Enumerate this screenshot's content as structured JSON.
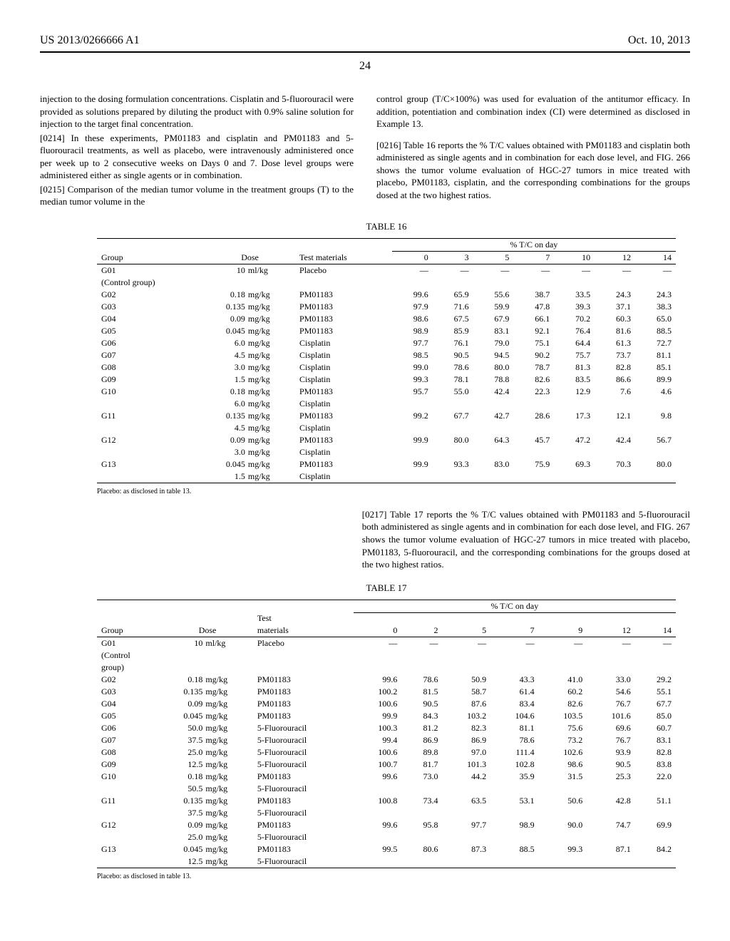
{
  "header": {
    "patent_id": "US 2013/0266666 A1",
    "date": "Oct. 10, 2013",
    "page_number": "24"
  },
  "paragraphs": {
    "col1_p1": "injection to the dosing formulation concentrations. Cisplatin and 5-fluorouracil were provided as solutions prepared by diluting the product with 0.9% saline solution for injection to the target final concentration.",
    "col1_p2_ref": "[0214]",
    "col1_p2": " In these experiments, PM01183 and cisplatin and PM01183 and 5-fluorouracil treatments, as well as placebo, were intravenously administered once per week up to 2 consecutive weeks on Days 0 and 7. Dose level groups were administered either as single agents or in combination.",
    "col1_p3_ref": "[0215]",
    "col1_p3": " Comparison of the median tumor volume in the treatment groups (T) to the median tumor volume in the",
    "col2_p1": "control group (T/C×100%) was used for evaluation of the antitumor efficacy. In addition, potentiation and combination index (CI) were determined as disclosed in Example 13.",
    "col2_p2_ref": "[0216]",
    "col2_p2": " Table 16 reports the % T/C values obtained with PM01183 and cisplatin both administered as single agents and in combination for each dose level, and FIG. 266 shows the tumor volume evaluation of HGC-27 tumors in mice treated with placebo, PM01183, cisplatin, and the corresponding combinations for the groups dosed at the two highest ratios.",
    "mid_ref": "[0217]",
    "mid": " Table 17 reports the % T/C values obtained with PM01183 and 5-fluorouracil both administered as single agents and in combination for each dose level, and FIG. 267 shows the tumor volume evaluation of HGC-27 tumors in mice treated with placebo, PM01183, 5-fluorouracil, and the corresponding combinations for the groups dosed at the two highest ratios."
  },
  "table16": {
    "caption": "TABLE 16",
    "super_header": "% T/C on day",
    "cols": [
      "Group",
      "Dose",
      "Test materials",
      "0",
      "3",
      "5",
      "7",
      "10",
      "12",
      "14"
    ],
    "footnote": "Placebo: as disclosed in table 13.",
    "rows": [
      {
        "group": "G01",
        "subgroup": "(Control group)",
        "dose_val": "10",
        "dose_unit": "ml/kg",
        "mat": "Placebo",
        "vals": [
          "—",
          "—",
          "—",
          "—",
          "—",
          "—",
          "—"
        ]
      },
      {
        "group": "G02",
        "dose_val": "0.18",
        "dose_unit": "mg/kg",
        "mat": "PM01183",
        "vals": [
          "99.6",
          "65.9",
          "55.6",
          "38.7",
          "33.5",
          "24.3",
          "24.3"
        ]
      },
      {
        "group": "G03",
        "dose_val": "0.135",
        "dose_unit": "mg/kg",
        "mat": "PM01183",
        "vals": [
          "97.9",
          "71.6",
          "59.9",
          "47.8",
          "39.3",
          "37.1",
          "38.3"
        ]
      },
      {
        "group": "G04",
        "dose_val": "0.09",
        "dose_unit": "mg/kg",
        "mat": "PM01183",
        "vals": [
          "98.6",
          "67.5",
          "67.9",
          "66.1",
          "70.2",
          "60.3",
          "65.0"
        ]
      },
      {
        "group": "G05",
        "dose_val": "0.045",
        "dose_unit": "mg/kg",
        "mat": "PM01183",
        "vals": [
          "98.9",
          "85.9",
          "83.1",
          "92.1",
          "76.4",
          "81.6",
          "88.5"
        ]
      },
      {
        "group": "G06",
        "dose_val": "6.0",
        "dose_unit": "mg/kg",
        "mat": "Cisplatin",
        "vals": [
          "97.7",
          "76.1",
          "79.0",
          "75.1",
          "64.4",
          "61.3",
          "72.7"
        ]
      },
      {
        "group": "G07",
        "dose_val": "4.5",
        "dose_unit": "mg/kg",
        "mat": "Cisplatin",
        "vals": [
          "98.5",
          "90.5",
          "94.5",
          "90.2",
          "75.7",
          "73.7",
          "81.1"
        ]
      },
      {
        "group": "G08",
        "dose_val": "3.0",
        "dose_unit": "mg/kg",
        "mat": "Cisplatin",
        "vals": [
          "99.0",
          "78.6",
          "80.0",
          "78.7",
          "81.3",
          "82.8",
          "85.1"
        ]
      },
      {
        "group": "G09",
        "dose_val": "1.5",
        "dose_unit": "mg/kg",
        "mat": "Cisplatin",
        "vals": [
          "99.3",
          "78.1",
          "78.8",
          "82.6",
          "83.5",
          "86.6",
          "89.9"
        ]
      },
      {
        "group": "G10",
        "dose_val": "0.18",
        "dose_unit": "mg/kg",
        "mat": "PM01183",
        "vals": [
          "95.7",
          "55.0",
          "42.4",
          "22.3",
          "12.9",
          "7.6",
          "4.6"
        ],
        "dose_val2": "6.0",
        "dose_unit2": "mg/kg",
        "mat2": "Cisplatin"
      },
      {
        "group": "G11",
        "dose_val": "0.135",
        "dose_unit": "mg/kg",
        "mat": "PM01183",
        "vals": [
          "99.2",
          "67.7",
          "42.7",
          "28.6",
          "17.3",
          "12.1",
          "9.8"
        ],
        "dose_val2": "4.5",
        "dose_unit2": "mg/kg",
        "mat2": "Cisplatin"
      },
      {
        "group": "G12",
        "dose_val": "0.09",
        "dose_unit": "mg/kg",
        "mat": "PM01183",
        "vals": [
          "99.9",
          "80.0",
          "64.3",
          "45.7",
          "47.2",
          "42.4",
          "56.7"
        ],
        "dose_val2": "3.0",
        "dose_unit2": "mg/kg",
        "mat2": "Cisplatin"
      },
      {
        "group": "G13",
        "dose_val": "0.045",
        "dose_unit": "mg/kg",
        "mat": "PM01183",
        "vals": [
          "99.9",
          "93.3",
          "83.0",
          "75.9",
          "69.3",
          "70.3",
          "80.0"
        ],
        "dose_val2": "1.5",
        "dose_unit2": "mg/kg",
        "mat2": "Cisplatin"
      }
    ]
  },
  "table17": {
    "caption": "TABLE 17",
    "super_header": "% T/C on day",
    "cols": [
      "Group",
      "Dose",
      "Test\nmaterials",
      "0",
      "2",
      "5",
      "7",
      "9",
      "12",
      "14"
    ],
    "footnote": "Placebo: as disclosed in table 13.",
    "rows": [
      {
        "group": "G01",
        "subgroup": "(Control\ngroup)",
        "dose_val": "10",
        "dose_unit": "ml/kg",
        "mat": "Placebo",
        "vals": [
          "—",
          "—",
          "—",
          "—",
          "—",
          "—",
          "—"
        ]
      },
      {
        "group": "G02",
        "dose_val": "0.18",
        "dose_unit": "mg/kg",
        "mat": "PM01183",
        "vals": [
          "99.6",
          "78.6",
          "50.9",
          "43.3",
          "41.0",
          "33.0",
          "29.2"
        ]
      },
      {
        "group": "G03",
        "dose_val": "0.135",
        "dose_unit": "mg/kg",
        "mat": "PM01183",
        "vals": [
          "100.2",
          "81.5",
          "58.7",
          "61.4",
          "60.2",
          "54.6",
          "55.1"
        ]
      },
      {
        "group": "G04",
        "dose_val": "0.09",
        "dose_unit": "mg/kg",
        "mat": "PM01183",
        "vals": [
          "100.6",
          "90.5",
          "87.6",
          "83.4",
          "82.6",
          "76.7",
          "67.7"
        ]
      },
      {
        "group": "G05",
        "dose_val": "0.045",
        "dose_unit": "mg/kg",
        "mat": "PM01183",
        "vals": [
          "99.9",
          "84.3",
          "103.2",
          "104.6",
          "103.5",
          "101.6",
          "85.0"
        ]
      },
      {
        "group": "G06",
        "dose_val": "50.0",
        "dose_unit": "mg/kg",
        "mat": "5-Fluorouracil",
        "vals": [
          "100.3",
          "81.2",
          "82.3",
          "81.1",
          "75.6",
          "69.6",
          "60.7"
        ]
      },
      {
        "group": "G07",
        "dose_val": "37.5",
        "dose_unit": "mg/kg",
        "mat": "5-Fluorouracil",
        "vals": [
          "99.4",
          "86.9",
          "86.9",
          "78.6",
          "73.2",
          "76.7",
          "83.1"
        ]
      },
      {
        "group": "G08",
        "dose_val": "25.0",
        "dose_unit": "mg/kg",
        "mat": "5-Fluorouracil",
        "vals": [
          "100.6",
          "89.8",
          "97.0",
          "111.4",
          "102.6",
          "93.9",
          "82.8"
        ]
      },
      {
        "group": "G09",
        "dose_val": "12.5",
        "dose_unit": "mg/kg",
        "mat": "5-Fluorouracil",
        "vals": [
          "100.7",
          "81.7",
          "101.3",
          "102.8",
          "98.6",
          "90.5",
          "83.8"
        ]
      },
      {
        "group": "G10",
        "dose_val": "0.18",
        "dose_unit": "mg/kg",
        "mat": "PM01183",
        "vals": [
          "99.6",
          "73.0",
          "44.2",
          "35.9",
          "31.5",
          "25.3",
          "22.0"
        ],
        "dose_val2": "50.5",
        "dose_unit2": "mg/kg",
        "mat2": "5-Fluorouracil"
      },
      {
        "group": "G11",
        "dose_val": "0.135",
        "dose_unit": "mg/kg",
        "mat": "PM01183",
        "vals": [
          "100.8",
          "73.4",
          "63.5",
          "53.1",
          "50.6",
          "42.8",
          "51.1"
        ],
        "dose_val2": "37.5",
        "dose_unit2": "mg/kg",
        "mat2": "5-Fluorouracil"
      },
      {
        "group": "G12",
        "dose_val": "0.09",
        "dose_unit": "mg/kg",
        "mat": "PM01183",
        "vals": [
          "99.6",
          "95.8",
          "97.7",
          "98.9",
          "90.0",
          "74.7",
          "69.9"
        ],
        "dose_val2": "25.0",
        "dose_unit2": "mg/kg",
        "mat2": "5-Fluorouracil"
      },
      {
        "group": "G13",
        "dose_val": "0.045",
        "dose_unit": "mg/kg",
        "mat": "PM01183",
        "vals": [
          "99.5",
          "80.6",
          "87.3",
          "88.5",
          "99.3",
          "87.1",
          "84.2"
        ],
        "dose_val2": "12.5",
        "dose_unit2": "mg/kg",
        "mat2": "5-Fluorouracil"
      }
    ]
  }
}
